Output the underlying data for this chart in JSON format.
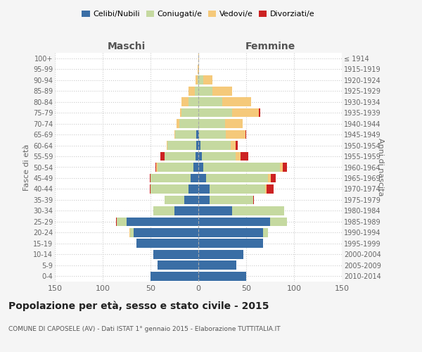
{
  "age_groups": [
    "0-4",
    "5-9",
    "10-14",
    "15-19",
    "20-24",
    "25-29",
    "30-34",
    "35-39",
    "40-44",
    "45-49",
    "50-54",
    "55-59",
    "60-64",
    "65-69",
    "70-74",
    "75-79",
    "80-84",
    "85-89",
    "90-94",
    "95-99",
    "100+"
  ],
  "birth_years": [
    "2010-2014",
    "2005-2009",
    "2000-2004",
    "1995-1999",
    "1990-1994",
    "1985-1989",
    "1980-1984",
    "1975-1979",
    "1970-1974",
    "1965-1969",
    "1960-1964",
    "1955-1959",
    "1950-1954",
    "1945-1949",
    "1940-1944",
    "1935-1939",
    "1930-1934",
    "1925-1929",
    "1920-1924",
    "1915-1919",
    "≤ 1914"
  ],
  "maschi": {
    "celibe": [
      50,
      43,
      47,
      65,
      68,
      75,
      25,
      15,
      10,
      8,
      5,
      3,
      2,
      2,
      0,
      0,
      0,
      0,
      0,
      0,
      0
    ],
    "coniugato": [
      0,
      0,
      0,
      0,
      3,
      10,
      22,
      20,
      40,
      42,
      38,
      32,
      30,
      22,
      20,
      18,
      10,
      4,
      1,
      0,
      0
    ],
    "vedovo": [
      0,
      0,
      0,
      0,
      1,
      0,
      0,
      0,
      0,
      0,
      1,
      0,
      1,
      1,
      3,
      1,
      8,
      6,
      2,
      1,
      0
    ],
    "divorziato": [
      0,
      0,
      0,
      0,
      0,
      1,
      0,
      0,
      1,
      1,
      1,
      5,
      0,
      0,
      0,
      0,
      0,
      0,
      0,
      0,
      0
    ]
  },
  "femmine": {
    "nubile": [
      50,
      40,
      47,
      68,
      68,
      75,
      35,
      12,
      12,
      8,
      5,
      4,
      2,
      1,
      0,
      0,
      0,
      0,
      0,
      0,
      0
    ],
    "coniugata": [
      0,
      0,
      0,
      0,
      5,
      18,
      55,
      45,
      58,
      65,
      80,
      35,
      32,
      28,
      28,
      35,
      25,
      15,
      5,
      0,
      0
    ],
    "vedova": [
      0,
      0,
      0,
      0,
      0,
      0,
      0,
      0,
      1,
      3,
      3,
      5,
      5,
      20,
      18,
      28,
      30,
      20,
      10,
      1,
      1
    ],
    "divorziata": [
      0,
      0,
      0,
      0,
      0,
      0,
      0,
      1,
      8,
      5,
      5,
      8,
      2,
      1,
      0,
      2,
      0,
      0,
      0,
      0,
      0
    ]
  },
  "colors": {
    "celibe": "#3a6ea5",
    "coniugato": "#c5d9a0",
    "vedovo": "#f5c97a",
    "divorziato": "#cc2222"
  },
  "xlim": 150,
  "title": "Popolazione per età, sesso e stato civile - 2015",
  "subtitle": "COMUNE DI CAPOSELE (AV) - Dati ISTAT 1° gennaio 2015 - Elaborazione TUTTITALIA.IT",
  "ylabel_left": "Fasce di età",
  "ylabel_right": "Anni di nascita",
  "xlabel_left": "Maschi",
  "xlabel_right": "Femmine",
  "bg_color": "#f5f5f5",
  "plot_bg": "#ffffff"
}
